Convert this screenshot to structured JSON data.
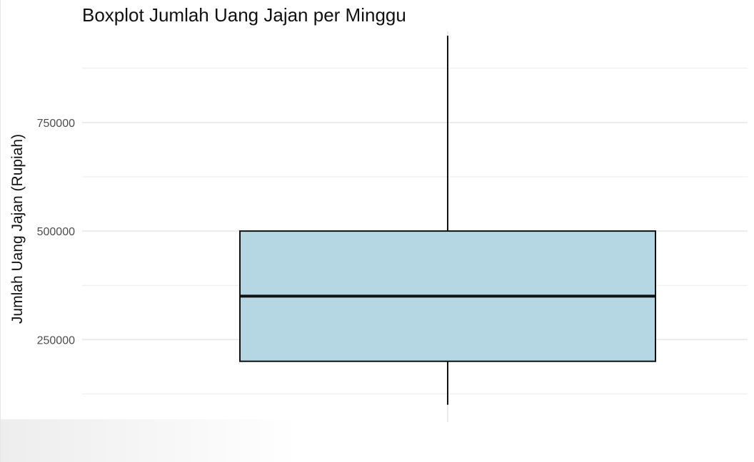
{
  "chart_data": {
    "type": "box",
    "title": "Boxplot Jumlah Uang Jajan per Minggu",
    "xlabel": "",
    "ylabel": "Jumlah Uang Jajan (Rupiah)",
    "ylim": [
      60000,
      960000
    ],
    "y_ticks": [
      250000,
      500000,
      750000
    ],
    "y_tick_labels": [
      "250000",
      "500000",
      "750000"
    ],
    "y_minor_ticks": [
      125000,
      375000,
      625000,
      875000
    ],
    "grid": true,
    "box": {
      "whisker_low": 100000,
      "q1": 200000,
      "median": 350000,
      "q3": 500000,
      "whisker_high": 950000
    },
    "colors": {
      "box_fill": "#b4d7e3",
      "box_stroke": "#111111",
      "grid": "#ebebeb",
      "tick_label": "#4d4d4d"
    }
  }
}
